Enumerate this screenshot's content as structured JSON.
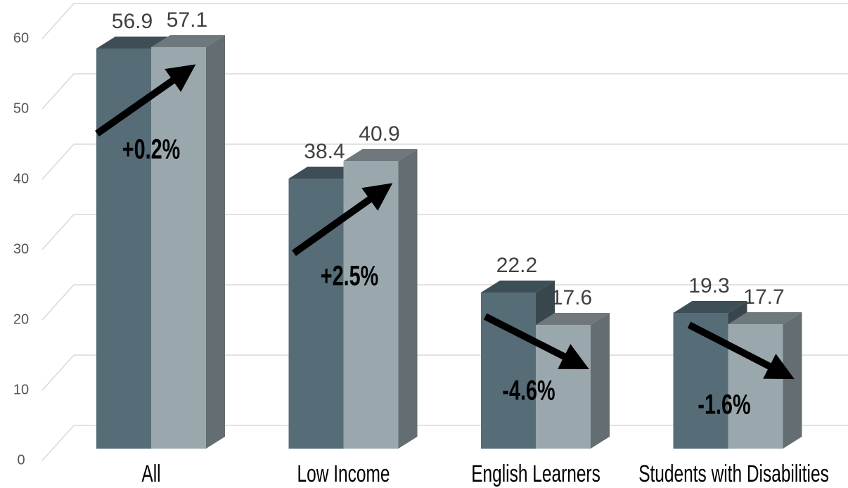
{
  "chart_data": {
    "type": "bar3d",
    "categories": [
      "All",
      "Low Income",
      "English Learners",
      "Students with Disabilities"
    ],
    "series": [
      {
        "color": "#566d78",
        "values": [
          56.9,
          38.4,
          22.2,
          19.3
        ]
      },
      {
        "color": "#9aa8ae",
        "values": [
          57.1,
          40.9,
          17.6,
          17.7
        ]
      }
    ],
    "annotations": [
      "+0.2%",
      "+2.5%",
      "-4.6%",
      "-1.6%"
    ],
    "ylim": [
      0,
      60
    ],
    "yticks": [
      0,
      10,
      20,
      30,
      40,
      50,
      60
    ],
    "grid": true
  }
}
